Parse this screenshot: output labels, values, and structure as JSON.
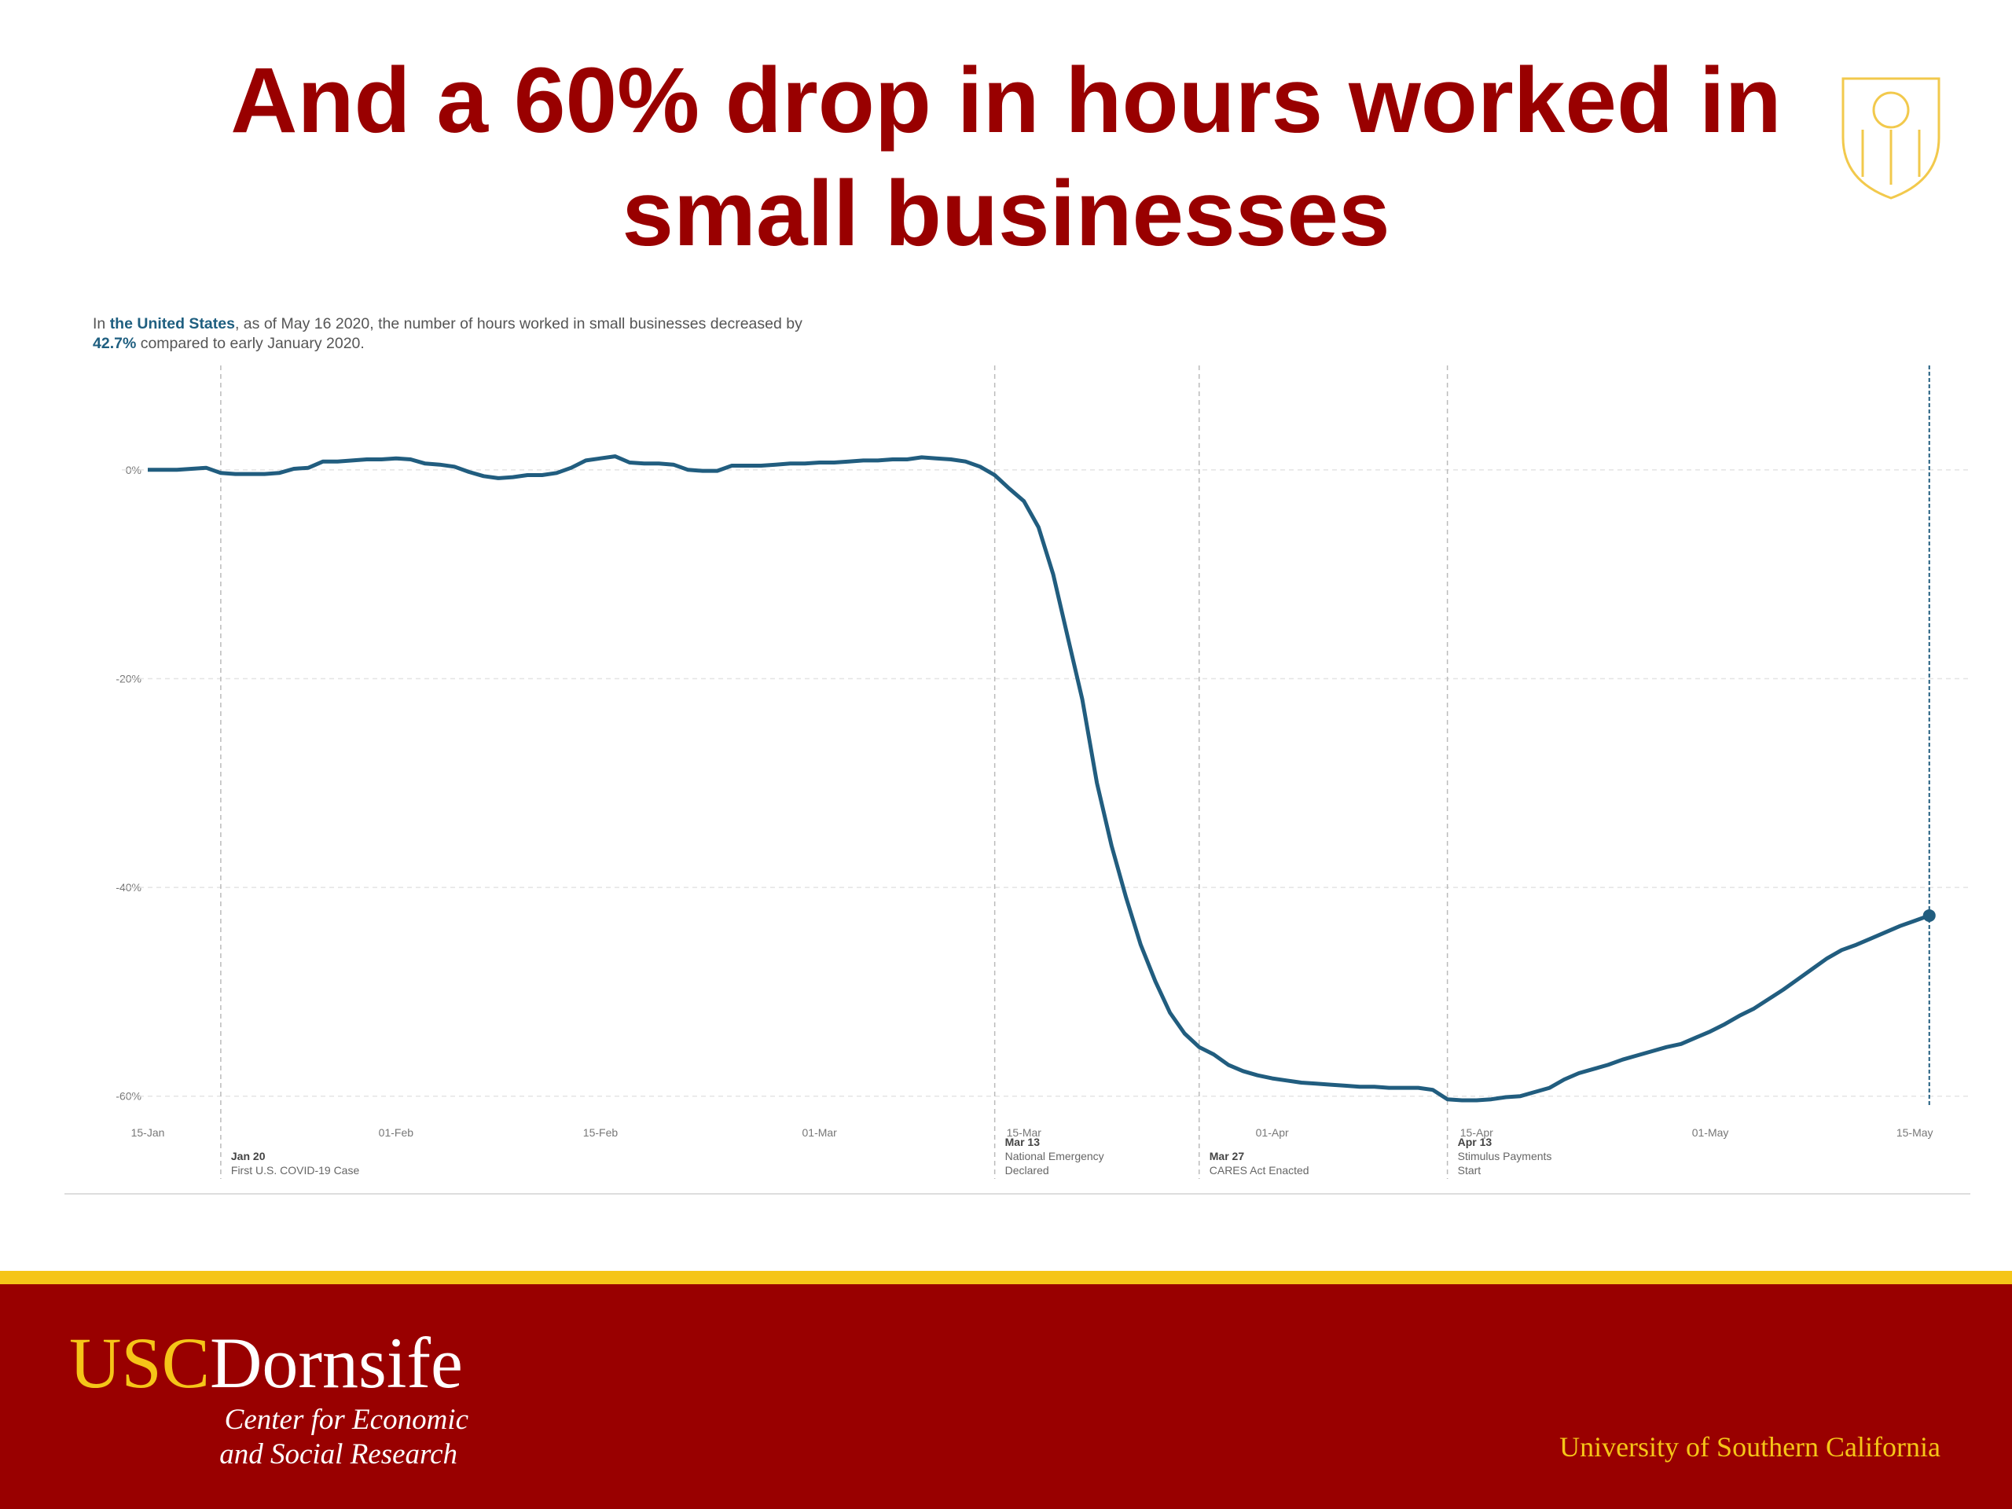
{
  "title": [
    "And a 60% drop in hours worked in",
    "small businesses"
  ],
  "chart_data": {
    "type": "line",
    "subtitle": [
      "In ",
      "the United States",
      ", as of May 16 2020, the number of hours worked in small businesses decreased by ",
      "42.7%",
      " compared to early January 2020."
    ],
    "x": [
      "15-Jan",
      "16-Jan",
      "17-Jan",
      "18-Jan",
      "19-Jan",
      "20-Jan",
      "21-Jan",
      "22-Jan",
      "23-Jan",
      "24-Jan",
      "25-Jan",
      "26-Jan",
      "27-Jan",
      "28-Jan",
      "29-Jan",
      "30-Jan",
      "31-Jan",
      "01-Feb",
      "02-Feb",
      "03-Feb",
      "04-Feb",
      "05-Feb",
      "06-Feb",
      "07-Feb",
      "08-Feb",
      "09-Feb",
      "10-Feb",
      "11-Feb",
      "12-Feb",
      "13-Feb",
      "14-Feb",
      "15-Feb",
      "16-Feb",
      "17-Feb",
      "18-Feb",
      "19-Feb",
      "20-Feb",
      "21-Feb",
      "22-Feb",
      "23-Feb",
      "24-Feb",
      "25-Feb",
      "26-Feb",
      "27-Feb",
      "28-Feb",
      "29-Feb",
      "01-Mar",
      "02-Mar",
      "03-Mar",
      "04-Mar",
      "05-Mar",
      "06-Mar",
      "07-Mar",
      "08-Mar",
      "09-Mar",
      "10-Mar",
      "11-Mar",
      "12-Mar",
      "13-Mar",
      "14-Mar",
      "15-Mar",
      "16-Mar",
      "17-Mar",
      "18-Mar",
      "19-Mar",
      "20-Mar",
      "21-Mar",
      "22-Mar",
      "23-Mar",
      "24-Mar",
      "25-Mar",
      "26-Mar",
      "27-Mar",
      "28-Mar",
      "29-Mar",
      "30-Mar",
      "31-Mar",
      "01-Apr",
      "02-Apr",
      "03-Apr",
      "04-Apr",
      "05-Apr",
      "06-Apr",
      "07-Apr",
      "08-Apr",
      "09-Apr",
      "10-Apr",
      "11-Apr",
      "12-Apr",
      "13-Apr",
      "14-Apr",
      "15-Apr",
      "16-Apr",
      "17-Apr",
      "18-Apr",
      "19-Apr",
      "20-Apr",
      "21-Apr",
      "22-Apr",
      "23-Apr",
      "24-Apr",
      "25-Apr",
      "26-Apr",
      "27-Apr",
      "28-Apr",
      "29-Apr",
      "30-Apr",
      "01-May",
      "02-May",
      "03-May",
      "04-May",
      "05-May",
      "06-May",
      "07-May",
      "08-May",
      "09-May",
      "10-May",
      "11-May",
      "12-May",
      "13-May",
      "14-May",
      "15-May",
      "16-May"
    ],
    "series": [
      {
        "color": "#215d7f",
        "values": [
          0,
          0,
          0,
          0.1,
          0.2,
          -0.3,
          -0.4,
          -0.4,
          -0.4,
          -0.3,
          0.1,
          0.2,
          0.8,
          0.8,
          0.9,
          1.0,
          1.0,
          1.1,
          1.0,
          0.6,
          0.5,
          0.3,
          -0.2,
          -0.6,
          -0.8,
          -0.7,
          -0.5,
          -0.5,
          -0.3,
          0.2,
          0.9,
          1.1,
          1.3,
          0.7,
          0.6,
          0.6,
          0.5,
          0.0,
          -0.1,
          -0.1,
          0.4,
          0.4,
          0.4,
          0.5,
          0.6,
          0.6,
          0.7,
          0.7,
          0.8,
          0.9,
          0.9,
          1.0,
          1.0,
          1.2,
          1.1,
          1.0,
          0.8,
          0.3,
          -0.5,
          -1.8,
          -3.0,
          -5.5,
          -10,
          -16,
          -22,
          -30,
          -36,
          -41,
          -45.5,
          -49,
          -52,
          -54,
          -55.3,
          -56,
          -57,
          -57.6,
          -58,
          -58.3,
          -58.5,
          -58.7,
          -58.8,
          -58.9,
          -59,
          -59.1,
          -59.1,
          -59.2,
          -59.2,
          -59.2,
          -59.4,
          -60.3,
          -60.4,
          -60.4,
          -60.3,
          -60.1,
          -60.0,
          -59.6,
          -59.2,
          -58.4,
          -57.8,
          -57.4,
          -57.0,
          -56.5,
          -56.1,
          -55.7,
          -55.3,
          -55.0,
          -54.4,
          -53.8,
          -53.1,
          -52.3,
          -51.6,
          -50.7,
          -49.8,
          -48.8,
          -47.8,
          -46.8,
          -46.0,
          -45.5,
          -44.9,
          -44.3,
          -43.7,
          -43.2,
          -42.7
        ]
      }
    ],
    "ylim": [
      -61,
      10
    ],
    "yticks": [
      {
        "value": 0,
        "label": "0%"
      },
      {
        "value": -20,
        "label": "-20%"
      },
      {
        "value": -40,
        "label": "-40%"
      },
      {
        "value": -60,
        "label": "-60%"
      }
    ],
    "xticks": [
      "15-Jan",
      "01-Feb",
      "15-Feb",
      "01-Mar",
      "15-Mar",
      "01-Apr",
      "15-Apr",
      "01-May",
      "15-May"
    ],
    "grid": true,
    "end_marker": true,
    "annotations": [
      {
        "x": "20-Jan",
        "label": "Jan 20",
        "text": [
          "First U.S. COVID-19 Case"
        ]
      },
      {
        "x": "13-Mar",
        "label": "Mar 13",
        "text": [
          "National Emergency",
          "Declared"
        ]
      },
      {
        "x": "27-Mar",
        "label": "Mar 27",
        "text": [
          "CARES Act Enacted"
        ]
      },
      {
        "x": "13-Apr",
        "label": "Apr 13",
        "text": [
          "Stimulus Payments",
          "Start"
        ]
      }
    ]
  },
  "footer": {
    "logo": [
      "USC",
      "Dornsife"
    ],
    "center": [
      "Center for Economic",
      "and Social Research"
    ],
    "university": "University of Southern California"
  }
}
